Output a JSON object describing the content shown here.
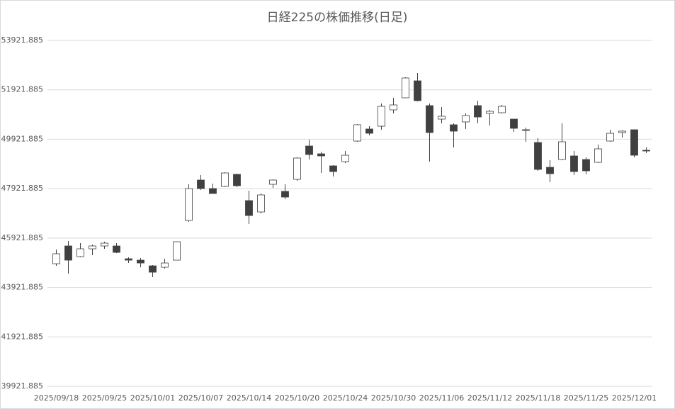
{
  "chart_data": {
    "type": "candlestick",
    "title": "日経225の株価推移(日足)",
    "categories": [
      "2025/09/18",
      null,
      null,
      null,
      "2025/09/25",
      null,
      null,
      null,
      "2025/10/01",
      null,
      null,
      null,
      "2025/10/07",
      null,
      null,
      null,
      "2025/10/14",
      null,
      null,
      null,
      "2025/10/20",
      null,
      null,
      null,
      "2025/10/24",
      null,
      null,
      null,
      "2025/10/30",
      null,
      null,
      null,
      "2025/11/06",
      null,
      null,
      null,
      "2025/11/12",
      null,
      null,
      null,
      "2025/11/18",
      null,
      null,
      null,
      "2025/11/25",
      null,
      null,
      null,
      "2025/12/01",
      null
    ],
    "open": [
      44884,
      45602,
      45171,
      45487,
      45602,
      45602,
      45085,
      45028,
      44798,
      44741,
      45028,
      46635,
      48270,
      47926,
      48012,
      48500,
      47438,
      46979,
      48098,
      47811,
      48299,
      49647,
      49332,
      48844,
      49016,
      49848,
      50336,
      50450,
      51110,
      51598,
      52286,
      51282,
      50737,
      50508,
      50623,
      51282,
      50967,
      50995,
      50737,
      50307,
      49790,
      48786,
      49102,
      49246,
      49102,
      48987,
      49848,
      50192,
      50307,
      49475
    ],
    "high": [
      45458,
      45802,
      45716,
      45659,
      45774,
      45716,
      45143,
      45114,
      44827,
      45085,
      45774,
      48098,
      48471,
      48126,
      48586,
      48528,
      47840,
      47725,
      48299,
      48098,
      49188,
      49905,
      49418,
      48872,
      49446,
      50536,
      50450,
      51368,
      51598,
      52430,
      52602,
      51368,
      51225,
      50565,
      50967,
      51483,
      51110,
      51311,
      50737,
      50393,
      49962,
      49073,
      50565,
      49446,
      49188,
      49704,
      50307,
      50278,
      50307,
      49590
    ],
    "low": [
      44798,
      44483,
      45143,
      45229,
      45487,
      45315,
      44913,
      44741,
      44339,
      44683,
      45028,
      46577,
      47868,
      47725,
      47983,
      47983,
      46491,
      46921,
      47954,
      47495,
      48241,
      49102,
      48557,
      48413,
      48958,
      49819,
      50077,
      50307,
      50967,
      51598,
      51454,
      49016,
      50565,
      49590,
      50335,
      50565,
      50479,
      50967,
      50221,
      49819,
      48643,
      48184,
      49073,
      48471,
      48500,
      48958,
      49819,
      49991,
      49188,
      49360
    ],
    "close": [
      45286,
      45028,
      45487,
      45602,
      45716,
      45343,
      45028,
      44913,
      44540,
      44913,
      45774,
      47926,
      47926,
      47725,
      48557,
      48040,
      46835,
      47668,
      48270,
      47581,
      49160,
      49303,
      49246,
      48614,
      49274,
      50508,
      50163,
      51254,
      51311,
      52401,
      51483,
      50192,
      50852,
      50249,
      50881,
      50823,
      51053,
      51254,
      50364,
      50278,
      48700,
      48528,
      49819,
      48614,
      48643,
      49532,
      50163,
      50250,
      49274,
      49446
    ],
    "up_color": "#ffffff",
    "down_color": "#404040",
    "line_color": "#404040",
    "ylim": [
      39921.885,
      53921.885
    ],
    "yticks": [
      39921.885,
      41921.885,
      43921.885,
      45921.885,
      47921.885,
      49921.885,
      51921.885,
      53921.885
    ],
    "grid": true
  }
}
